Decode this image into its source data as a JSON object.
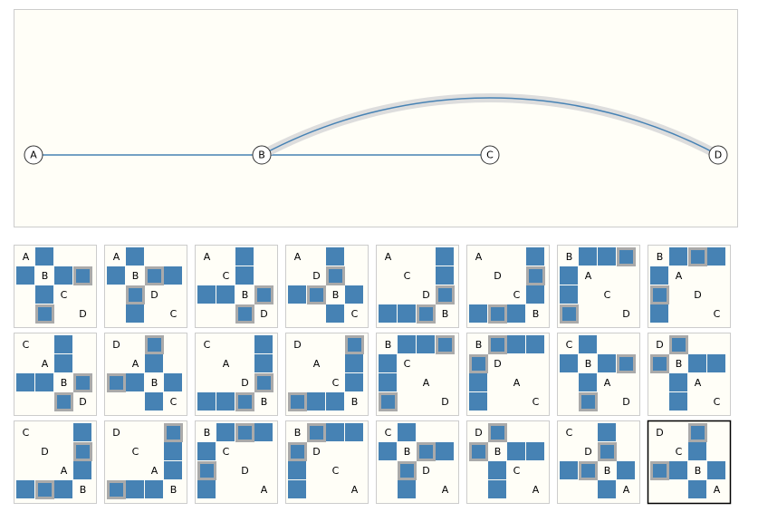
{
  "nodes": [
    "A",
    "B",
    "C",
    "D"
  ],
  "edges": [
    [
      "A",
      "B"
    ],
    [
      "B",
      "C"
    ],
    [
      "B",
      "D"
    ]
  ],
  "highlighted_edge": 2,
  "selected_order": 23,
  "orders": [
    [
      "A",
      "B",
      "C",
      "D"
    ],
    [
      "A",
      "B",
      "D",
      "C"
    ],
    [
      "A",
      "C",
      "B",
      "D"
    ],
    [
      "A",
      "D",
      "B",
      "C"
    ],
    [
      "A",
      "C",
      "D",
      "B"
    ],
    [
      "A",
      "D",
      "C",
      "B"
    ],
    [
      "B",
      "A",
      "C",
      "D"
    ],
    [
      "B",
      "A",
      "D",
      "C"
    ],
    [
      "C",
      "A",
      "B",
      "D"
    ],
    [
      "D",
      "A",
      "B",
      "C"
    ],
    [
      "C",
      "A",
      "D",
      "B"
    ],
    [
      "D",
      "A",
      "C",
      "B"
    ],
    [
      "B",
      "C",
      "A",
      "D"
    ],
    [
      "B",
      "D",
      "A",
      "C"
    ],
    [
      "C",
      "B",
      "A",
      "D"
    ],
    [
      "D",
      "B",
      "A",
      "C"
    ],
    [
      "C",
      "D",
      "A",
      "B"
    ],
    [
      "D",
      "C",
      "A",
      "B"
    ],
    [
      "B",
      "C",
      "D",
      "A"
    ],
    [
      "B",
      "D",
      "C",
      "A"
    ],
    [
      "C",
      "B",
      "D",
      "A"
    ],
    [
      "D",
      "B",
      "C",
      "A"
    ],
    [
      "C",
      "D",
      "B",
      "A"
    ],
    [
      "D",
      "C",
      "B",
      "A"
    ]
  ]
}
